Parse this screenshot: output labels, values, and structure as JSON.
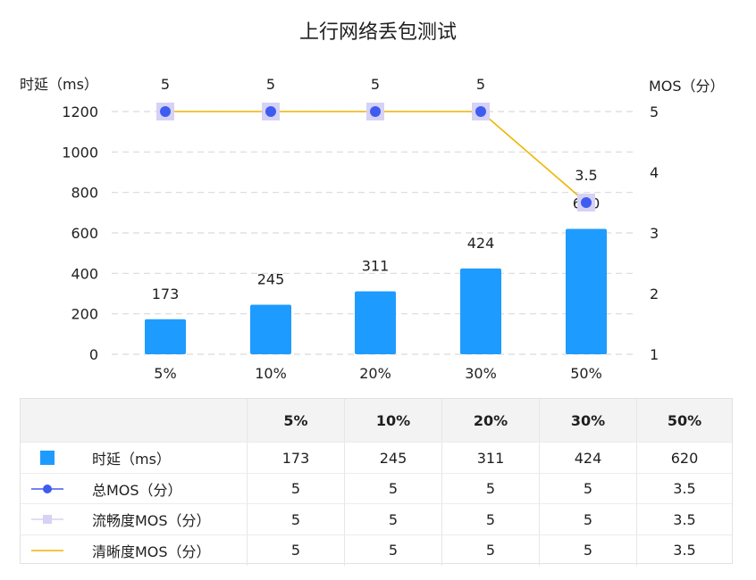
{
  "chart_data": {
    "type": "bar",
    "title": "上行网络丢包测试",
    "categories": [
      "5%",
      "10%",
      "20%",
      "30%",
      "50%"
    ],
    "y_left": {
      "label": "时延（ms）",
      "ylim": [
        0,
        1200
      ],
      "ticks": [
        "0",
        "200",
        "400",
        "600",
        "800",
        "1000",
        "1200"
      ]
    },
    "y_right": {
      "label": "MOS（分）",
      "ylim": [
        1,
        5
      ],
      "ticks": [
        "1",
        "2",
        "3",
        "4",
        "5"
      ]
    },
    "grid": true,
    "series": [
      {
        "name": "时延（ms）",
        "kind": "bar",
        "axis": "left",
        "values": [
          173,
          245,
          311,
          424,
          620
        ],
        "labels": [
          "173",
          "245",
          "311",
          "424",
          "620"
        ],
        "color": "#1e9bff"
      },
      {
        "name": "总MOS（分）",
        "kind": "point",
        "axis": "right",
        "values": [
          5,
          5,
          5,
          5,
          3.5
        ],
        "labels": [
          "5",
          "5",
          "5",
          "5",
          "3.5"
        ],
        "color": "#3f5bf0"
      },
      {
        "name": "流畅度MOS（分）",
        "kind": "square",
        "axis": "right",
        "values": [
          5,
          5,
          5,
          5,
          3.5
        ],
        "color": "#d5d2f5"
      },
      {
        "name": "清晰度MOS（分）",
        "kind": "line",
        "axis": "right",
        "values": [
          5,
          5,
          5,
          5,
          3.5
        ],
        "color": "#f0b400"
      }
    ]
  },
  "table": {
    "header": [
      "",
      "5%",
      "10%",
      "20%",
      "30%",
      "50%"
    ],
    "rows": [
      {
        "label": "时延（ms）",
        "icon": "bar-square-icon",
        "values": [
          "173",
          "245",
          "311",
          "424",
          "620"
        ]
      },
      {
        "label": "总MOS（分）",
        "icon": "line-dot-icon",
        "values": [
          "5",
          "5",
          "5",
          "5",
          "3.5"
        ]
      },
      {
        "label": "流畅度MOS（分）",
        "icon": "line-square-icon",
        "values": [
          "5",
          "5",
          "5",
          "5",
          "3.5"
        ]
      },
      {
        "label": "清晰度MOS（分）",
        "icon": "line-icon",
        "values": [
          "5",
          "5",
          "5",
          "5",
          "3.5"
        ]
      }
    ]
  }
}
